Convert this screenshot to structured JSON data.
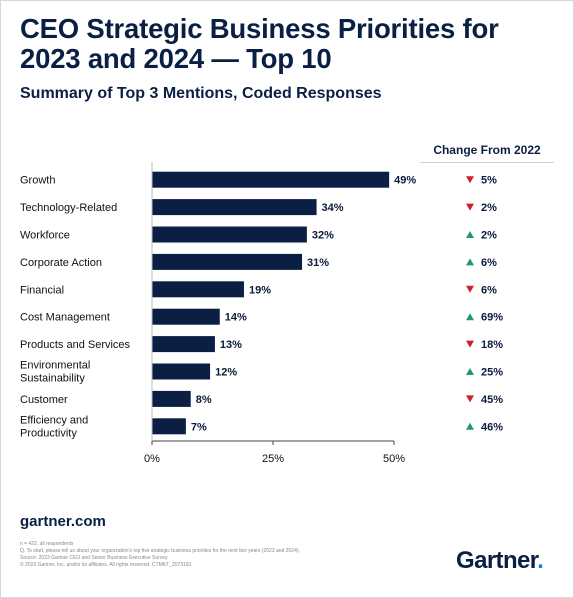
{
  "header": {
    "title": "CEO Strategic Business Priorities for 2023 and 2024 — Top 10",
    "subtitle": "Summary of Top 3 Mentions, Coded Responses",
    "change_header": "Change From 2022"
  },
  "chart_data": {
    "type": "bar",
    "orientation": "horizontal",
    "categories": [
      "Growth",
      "Technology-Related",
      "Workforce",
      "Corporate Action",
      "Financial",
      "Cost Management",
      "Products and Services",
      "Environmental Sustainability",
      "Customer",
      "Efficiency and Productivity"
    ],
    "category_lines": [
      [
        "Growth"
      ],
      [
        "Technology-Related"
      ],
      [
        "Workforce"
      ],
      [
        "Corporate Action"
      ],
      [
        "Financial"
      ],
      [
        "Cost Management"
      ],
      [
        "Products and Services"
      ],
      [
        "Environmental",
        "Sustainability"
      ],
      [
        "Customer"
      ],
      [
        "Efficiency and",
        "Productivity"
      ]
    ],
    "values": [
      49,
      34,
      32,
      31,
      19,
      14,
      13,
      12,
      8,
      7
    ],
    "value_labels": [
      "49%",
      "34%",
      "32%",
      "31%",
      "19%",
      "14%",
      "13%",
      "12%",
      "8%",
      "7%"
    ],
    "change": [
      {
        "direction": "down",
        "label": "5%"
      },
      {
        "direction": "down",
        "label": "2%"
      },
      {
        "direction": "up",
        "label": "2%"
      },
      {
        "direction": "up",
        "label": "6%"
      },
      {
        "direction": "down",
        "label": "6%"
      },
      {
        "direction": "up",
        "label": "69%"
      },
      {
        "direction": "down",
        "label": "18%"
      },
      {
        "direction": "up",
        "label": "25%"
      },
      {
        "direction": "down",
        "label": "45%"
      },
      {
        "direction": "up",
        "label": "46%"
      }
    ],
    "xlim": [
      0,
      50
    ],
    "xticks": [
      0,
      25,
      50
    ],
    "xtick_labels": [
      "0%",
      "25%",
      "50%"
    ],
    "grid": false,
    "colors": {
      "bar": "#0b1f45",
      "down": "#d0202e",
      "up": "#1c9a6b",
      "axis": "#444444"
    }
  },
  "footer": {
    "url": "gartner.com",
    "notes": [
      "n = 422; all respondents",
      "Q. To start, please tell us about your organization's top five strategic business priorities for the next two years (2023 and 2024).",
      "Source: 2023 Gartner CEO and Senior Business Executive Survey",
      "© 2023 Gartner, Inc. and/or its affiliates. All rights reserved. CTMKT_2073181"
    ],
    "logo_text": "Gartner",
    "logo_dot": "."
  }
}
